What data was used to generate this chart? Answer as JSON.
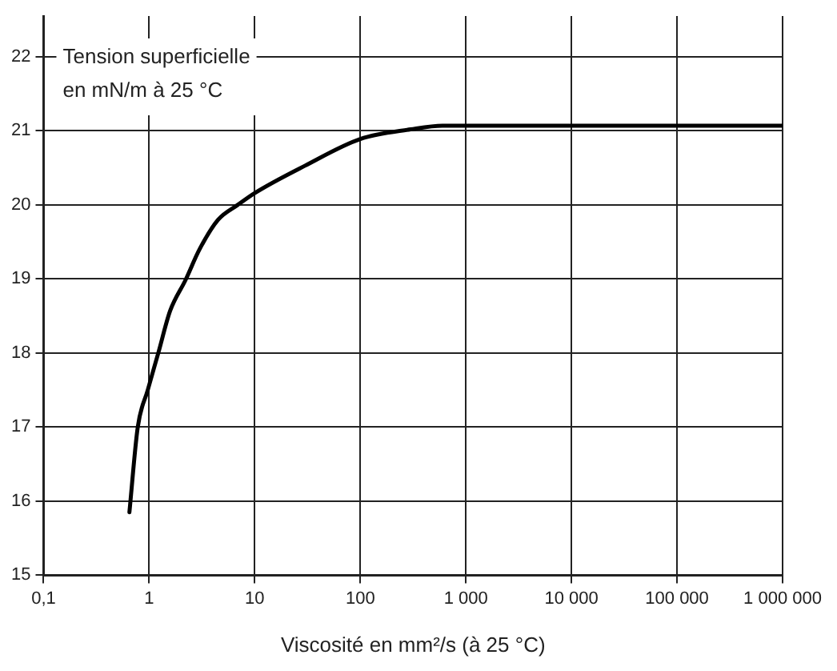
{
  "chart_data": {
    "type": "line",
    "ylabel": "Tension superficielle\nen mN/m à 25 °C",
    "xlabel": "Viscosité en mm²/s (à 25 °C)",
    "log": "x",
    "grid": true,
    "legend": false,
    "marker": "none",
    "line_style": "solid",
    "series": [
      {
        "color": "#000000",
        "x": [
          0.65,
          0.78,
          0.97,
          1.22,
          1.58,
          2.2,
          3,
          4.5,
          6.9,
          10,
          30,
          100,
          300,
          600,
          1000,
          10000,
          100000,
          1000000
        ],
        "values": [
          15.85,
          17.0,
          17.5,
          18.0,
          18.57,
          18.98,
          19.4,
          19.8,
          20.0,
          20.16,
          20.53,
          20.89,
          21.02,
          21.07,
          21.07,
          21.07,
          21.07,
          21.07
        ]
      }
    ],
    "xlim": [
      0.1,
      1000000
    ],
    "xticks": [
      {
        "value": 0.1,
        "label": "0,1"
      },
      1,
      10,
      100,
      {
        "value": 1000,
        "label": "1 000"
      },
      {
        "value": 10000,
        "label": "10 000"
      },
      {
        "value": 100000,
        "label": "100 000"
      },
      {
        "value": 1000000,
        "label": "1 000 000"
      }
    ],
    "ylim": [
      15,
      22.55
    ],
    "yticks": [
      15,
      16,
      17,
      18,
      19,
      20,
      21,
      22
    ]
  }
}
